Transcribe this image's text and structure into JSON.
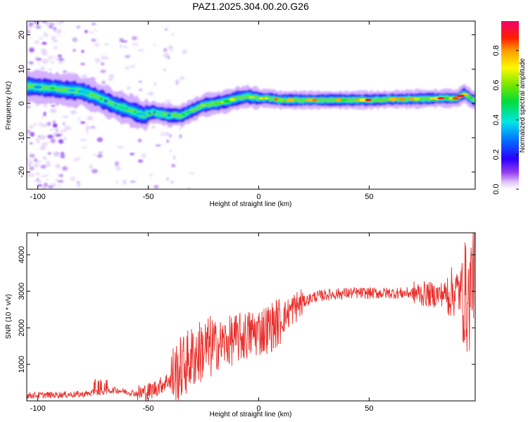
{
  "figure_title": "PAZ1.2025.304.00.20.G26",
  "chart_data": [
    {
      "type": "heatmap",
      "title": "PAZ1.2025.304.00.20.G26",
      "xlabel": "Height of straight line (km)",
      "ylabel": "Frequency (Hz)",
      "xlim": [
        -105,
        98
      ],
      "ylim": [
        -25,
        24
      ],
      "xticks": [
        -100,
        -50,
        0,
        50
      ],
      "yticks": [
        -20,
        -10,
        0,
        10,
        20
      ],
      "colorbar": {
        "label": "Normalized spectral amplitude",
        "range": [
          0,
          0.97
        ],
        "ticks": [
          0.0,
          0.2,
          0.4,
          0.6,
          0.8
        ],
        "colormap": "rainbow (white-violet-blue-cyan-green-yellow-orange-red-magenta)"
      },
      "ridge": {
        "description": "Dominant frequency track vs height",
        "x": [
          -104,
          -95,
          -88,
          -80,
          -72,
          -65,
          -58,
          -52,
          -48,
          -44,
          -40,
          -35,
          -30,
          -25,
          -20,
          -15,
          -10,
          -5,
          0,
          5,
          10,
          20,
          30,
          40,
          50,
          60,
          70,
          80,
          90,
          93,
          97
        ],
        "freq": [
          5,
          4.5,
          4,
          3.5,
          1.5,
          -0.5,
          -2,
          -3.5,
          -2.5,
          -3,
          -3.5,
          -3.5,
          -2,
          -0.5,
          0,
          0.5,
          1.5,
          2,
          1.5,
          1.5,
          1,
          1,
          1,
          1,
          1,
          1.2,
          1.3,
          1.5,
          1.5,
          3,
          1
        ]
      }
    },
    {
      "type": "line",
      "xlabel": "Height of straight line (km)",
      "ylabel": "SNR (10 * v/v)",
      "xlim": [
        -105,
        98
      ],
      "ylim": [
        0,
        4600
      ],
      "xticks": [
        -100,
        -50,
        0,
        50
      ],
      "yticks": [
        1000,
        2000,
        3000,
        4000
      ],
      "color": "#e8302c",
      "trend": {
        "description": "Approximate mean SNR envelope",
        "x": [
          -105,
          -80,
          -65,
          -55,
          -50,
          -45,
          -40,
          -35,
          -30,
          -25,
          -20,
          -15,
          -10,
          -5,
          0,
          5,
          10,
          15,
          20,
          25,
          30,
          40,
          50,
          60,
          70,
          80,
          85,
          90,
          93,
          95,
          97
        ],
        "y": [
          150,
          180,
          300,
          200,
          250,
          400,
          600,
          900,
          1200,
          1400,
          1500,
          1600,
          1700,
          1800,
          1900,
          2000,
          2200,
          2500,
          2700,
          2850,
          2900,
          2950,
          2950,
          2950,
          2950,
          2900,
          2950,
          3000,
          3000,
          2600,
          3700
        ]
      }
    }
  ]
}
